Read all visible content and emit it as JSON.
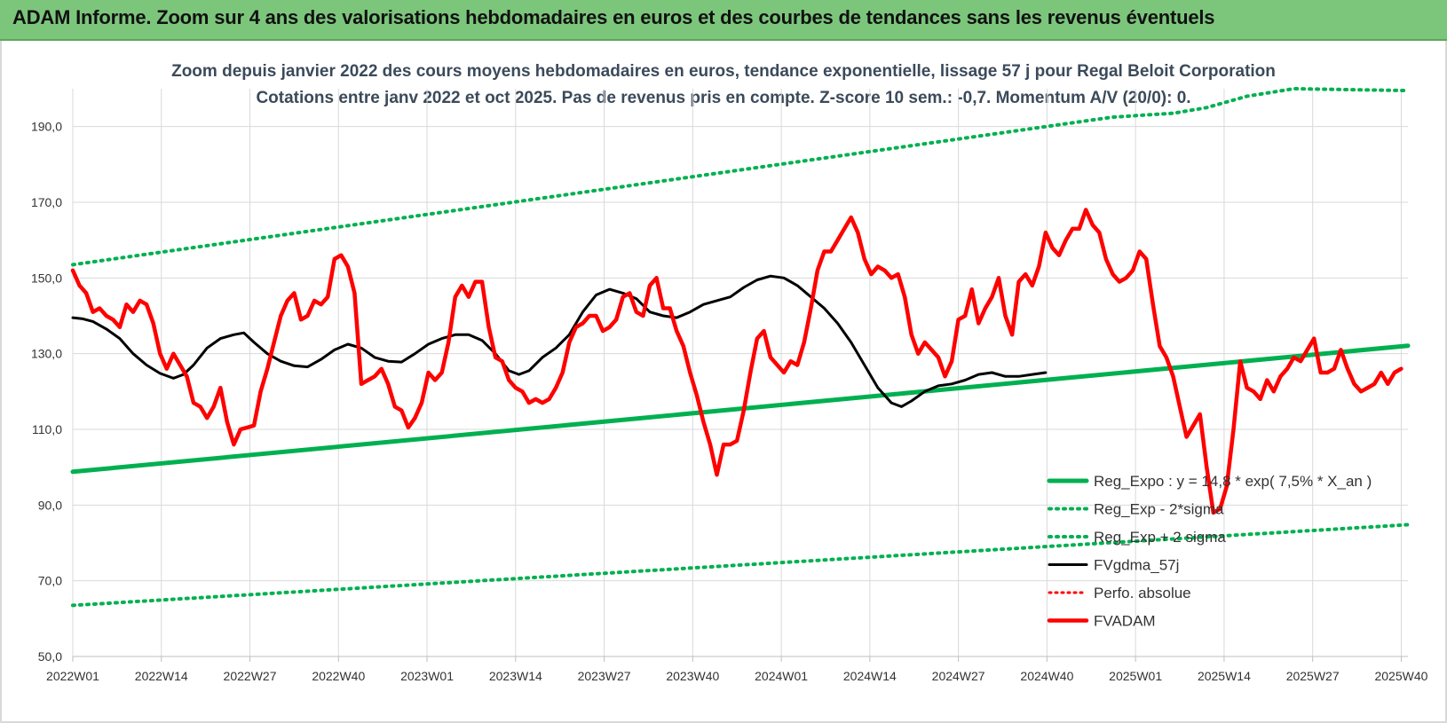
{
  "header": {
    "title": "ADAM Informe. Zoom sur 4 ans des valorisations hebdomadaires en euros et des courbes de tendances sans les revenus éventuels"
  },
  "chart_data": {
    "type": "line",
    "title": "Zoom depuis janvier 2022 des cours moyens hebdomadaires en euros, tendance exponentielle, lissage 57 j pour Regal Beloit Corporation",
    "subtitle": "Cotations entre janv 2022 et oct 2025. Pas de revenus pris en compte. Z-score 10 sem.: -0,7. Momentum A/V (20/0): 0.",
    "ylim": [
      50,
      200
    ],
    "y_ticks": [
      "50,0",
      "70,0",
      "90,0",
      "110,0",
      "130,0",
      "150,0",
      "170,0",
      "190,0"
    ],
    "x_tick_labels": [
      "2022W01",
      "2022W14",
      "2022W27",
      "2022W40",
      "2023W01",
      "2023W14",
      "2023W27",
      "2023W40",
      "2024W01",
      "2024W14",
      "2024W27",
      "2024W40",
      "2025W01",
      "2025W14",
      "2025W27",
      "2025W40"
    ],
    "grid": true,
    "legend_position": "bottom-right",
    "colors": {
      "reg_expo": "#00b050",
      "fvgdma": "#000000",
      "fvadam": "#ff0000",
      "perfo": "#ff0000"
    },
    "series": [
      {
        "name": "Reg_Expo : y = 14,8 * exp( 7,5% * X_an )",
        "style": "solid",
        "points": [
          [
            0,
            98.8
          ],
          [
            199,
            132.1
          ]
        ]
      },
      {
        "name": "Reg_Exp - 2*sigma",
        "style": "dotted",
        "points": [
          [
            0,
            63.5
          ],
          [
            199,
            84.8
          ]
        ]
      },
      {
        "name": "Reg_Exp + 2 sigma",
        "style": "dotted",
        "points": [
          [
            0,
            153.5
          ],
          [
            155,
            192.5
          ],
          [
            164,
            193.5
          ],
          [
            169,
            195
          ],
          [
            175,
            198
          ],
          [
            182,
            200
          ],
          [
            199,
            199.5
          ]
        ]
      },
      {
        "name": "FVgdma_57j",
        "style": "solid",
        "points": [
          [
            0,
            139.5
          ],
          [
            3,
            139.2
          ],
          [
            6,
            138.5
          ],
          [
            10,
            136.5
          ],
          [
            14,
            134
          ],
          [
            18,
            130
          ],
          [
            22,
            127
          ],
          [
            26,
            124.8
          ],
          [
            30,
            123.5
          ],
          [
            33,
            124.5
          ],
          [
            36,
            127
          ],
          [
            40,
            131.5
          ],
          [
            44,
            134
          ],
          [
            48,
            135
          ],
          [
            51,
            135.5
          ],
          [
            54,
            133
          ],
          [
            58,
            130
          ],
          [
            62,
            128
          ],
          [
            66,
            126.8
          ],
          [
            70,
            126.5
          ],
          [
            74,
            128.5
          ],
          [
            78,
            131
          ],
          [
            82,
            132.5
          ],
          [
            86,
            131.5
          ],
          [
            90,
            129
          ],
          [
            94,
            128
          ],
          [
            98,
            127.8
          ],
          [
            102,
            130
          ],
          [
            106,
            132.5
          ],
          [
            110,
            134
          ],
          [
            114,
            135
          ],
          [
            118,
            135
          ],
          [
            122,
            133.5
          ],
          [
            126,
            130
          ],
          [
            130,
            125.5
          ],
          [
            133,
            124.5
          ],
          [
            136,
            125.5
          ],
          [
            140,
            129
          ],
          [
            144,
            131.5
          ],
          [
            148,
            135
          ],
          [
            152,
            141
          ],
          [
            156,
            145.5
          ],
          [
            160,
            147
          ],
          [
            164,
            146
          ],
          [
            168,
            144.5
          ],
          [
            172,
            141
          ],
          [
            176,
            140
          ],
          [
            180,
            139.5
          ],
          [
            184,
            141
          ],
          [
            188,
            143
          ],
          [
            192,
            144
          ],
          [
            196,
            145
          ],
          [
            200,
            147.5
          ],
          [
            204,
            149.5
          ],
          [
            208,
            150.5
          ],
          [
            212,
            150
          ],
          [
            216,
            148
          ],
          [
            220,
            145
          ],
          [
            224,
            142
          ],
          [
            228,
            138
          ],
          [
            232,
            133
          ],
          [
            236,
            127
          ],
          [
            240,
            121
          ],
          [
            244,
            117
          ],
          [
            247,
            116
          ],
          [
            250,
            117.5
          ],
          [
            254,
            120
          ],
          [
            258,
            121.5
          ],
          [
            262,
            122
          ],
          [
            266,
            123
          ],
          [
            270,
            124.5
          ],
          [
            274,
            125
          ],
          [
            278,
            124
          ],
          [
            282,
            124
          ],
          [
            286,
            124.5
          ],
          [
            290,
            125
          ]
        ]
      },
      {
        "name": "Perfo. absolue",
        "style": "dotted",
        "points": []
      },
      {
        "name": "FVADAM",
        "style": "solid",
        "points": [
          [
            0,
            152
          ],
          [
            2,
            148
          ],
          [
            4,
            146
          ],
          [
            6,
            141
          ],
          [
            8,
            142
          ],
          [
            10,
            140
          ],
          [
            12,
            139
          ],
          [
            14,
            137
          ],
          [
            16,
            143
          ],
          [
            18,
            141
          ],
          [
            20,
            144
          ],
          [
            22,
            143
          ],
          [
            24,
            138
          ],
          [
            26,
            130
          ],
          [
            28,
            126
          ],
          [
            30,
            130
          ],
          [
            32,
            127
          ],
          [
            34,
            124
          ],
          [
            36,
            117
          ],
          [
            38,
            116
          ],
          [
            40,
            113
          ],
          [
            42,
            116
          ],
          [
            44,
            121
          ],
          [
            46,
            112
          ],
          [
            48,
            106
          ],
          [
            50,
            110
          ],
          [
            52,
            110.5
          ],
          [
            54,
            111
          ],
          [
            56,
            120
          ],
          [
            58,
            126
          ],
          [
            60,
            133
          ],
          [
            62,
            140
          ],
          [
            64,
            144
          ],
          [
            66,
            146
          ],
          [
            68,
            139
          ],
          [
            70,
            140
          ],
          [
            72,
            144
          ],
          [
            74,
            143
          ],
          [
            76,
            145
          ],
          [
            78,
            155
          ],
          [
            80,
            156
          ],
          [
            82,
            153
          ],
          [
            84,
            146
          ],
          [
            86,
            122
          ],
          [
            88,
            123
          ],
          [
            90,
            124
          ],
          [
            92,
            126
          ],
          [
            94,
            122
          ],
          [
            96,
            116
          ],
          [
            98,
            115
          ],
          [
            100,
            110.5
          ],
          [
            102,
            113
          ],
          [
            104,
            117
          ],
          [
            106,
            125
          ],
          [
            108,
            123
          ],
          [
            110,
            125
          ],
          [
            112,
            133
          ],
          [
            114,
            145
          ],
          [
            116,
            148
          ],
          [
            118,
            145
          ],
          [
            120,
            149
          ],
          [
            122,
            149
          ],
          [
            124,
            137
          ],
          [
            126,
            129
          ],
          [
            128,
            128
          ],
          [
            130,
            123
          ],
          [
            132,
            121
          ],
          [
            134,
            120
          ],
          [
            136,
            117
          ],
          [
            138,
            118
          ],
          [
            140,
            117
          ],
          [
            142,
            118
          ],
          [
            144,
            121
          ],
          [
            146,
            125
          ],
          [
            148,
            133
          ],
          [
            150,
            137
          ],
          [
            152,
            138
          ],
          [
            154,
            140
          ],
          [
            156,
            140
          ],
          [
            158,
            136
          ],
          [
            160,
            137
          ],
          [
            162,
            139
          ],
          [
            164,
            145
          ],
          [
            166,
            146
          ],
          [
            168,
            141
          ],
          [
            170,
            140
          ],
          [
            172,
            148
          ],
          [
            174,
            150
          ],
          [
            176,
            142
          ],
          [
            178,
            142
          ],
          [
            180,
            136
          ],
          [
            182,
            132
          ],
          [
            184,
            125
          ],
          [
            186,
            119
          ],
          [
            188,
            112
          ],
          [
            190,
            106
          ],
          [
            192,
            98
          ],
          [
            194,
            106
          ],
          [
            196,
            106
          ],
          [
            198,
            107
          ],
          [
            200,
            115
          ],
          [
            202,
            125
          ],
          [
            204,
            134
          ],
          [
            206,
            136
          ],
          [
            208,
            129
          ],
          [
            210,
            127
          ],
          [
            212,
            125
          ],
          [
            214,
            128
          ],
          [
            216,
            127
          ],
          [
            218,
            133
          ],
          [
            220,
            142
          ],
          [
            222,
            152
          ],
          [
            224,
            157
          ],
          [
            226,
            157
          ],
          [
            228,
            160
          ],
          [
            230,
            163
          ],
          [
            232,
            166
          ],
          [
            234,
            162
          ],
          [
            236,
            155
          ],
          [
            238,
            151
          ],
          [
            240,
            153
          ],
          [
            242,
            152
          ],
          [
            244,
            150
          ],
          [
            246,
            151
          ],
          [
            248,
            145
          ],
          [
            250,
            135
          ],
          [
            252,
            130
          ],
          [
            254,
            133
          ],
          [
            256,
            131
          ],
          [
            258,
            129
          ],
          [
            260,
            124
          ],
          [
            262,
            128
          ],
          [
            264,
            139
          ],
          [
            266,
            140
          ],
          [
            268,
            147
          ],
          [
            270,
            138
          ],
          [
            272,
            142
          ],
          [
            274,
            145
          ],
          [
            276,
            150
          ],
          [
            278,
            140
          ],
          [
            280,
            135
          ],
          [
            282,
            149
          ],
          [
            284,
            151
          ],
          [
            286,
            148
          ],
          [
            288,
            153
          ],
          [
            290,
            162
          ],
          [
            292,
            158
          ],
          [
            294,
            156
          ],
          [
            296,
            160
          ],
          [
            298,
            163
          ],
          [
            300,
            163
          ],
          [
            302,
            168
          ],
          [
            304,
            164
          ],
          [
            306,
            162
          ],
          [
            308,
            155
          ],
          [
            310,
            151
          ],
          [
            312,
            149
          ],
          [
            314,
            150
          ],
          [
            316,
            152
          ],
          [
            318,
            157
          ],
          [
            320,
            155
          ],
          [
            322,
            143
          ],
          [
            324,
            132
          ],
          [
            326,
            129
          ],
          [
            328,
            124
          ],
          [
            330,
            116
          ],
          [
            332,
            108
          ],
          [
            334,
            111
          ],
          [
            336,
            114
          ],
          [
            338,
            100
          ],
          [
            340,
            88
          ],
          [
            342,
            89
          ],
          [
            344,
            95
          ],
          [
            346,
            110
          ],
          [
            348,
            128
          ],
          [
            350,
            121
          ],
          [
            352,
            120
          ],
          [
            354,
            118
          ],
          [
            356,
            123
          ],
          [
            358,
            120
          ],
          [
            360,
            124
          ],
          [
            362,
            126
          ],
          [
            364,
            129
          ],
          [
            366,
            128
          ],
          [
            368,
            131
          ],
          [
            370,
            134
          ],
          [
            372,
            125
          ],
          [
            374,
            125
          ],
          [
            376,
            126
          ],
          [
            378,
            131
          ],
          [
            380,
            126
          ],
          [
            382,
            122
          ],
          [
            384,
            120
          ],
          [
            386,
            121
          ],
          [
            388,
            122
          ],
          [
            390,
            125
          ],
          [
            392,
            122
          ],
          [
            394,
            125
          ],
          [
            396,
            126
          ]
        ]
      }
    ]
  }
}
